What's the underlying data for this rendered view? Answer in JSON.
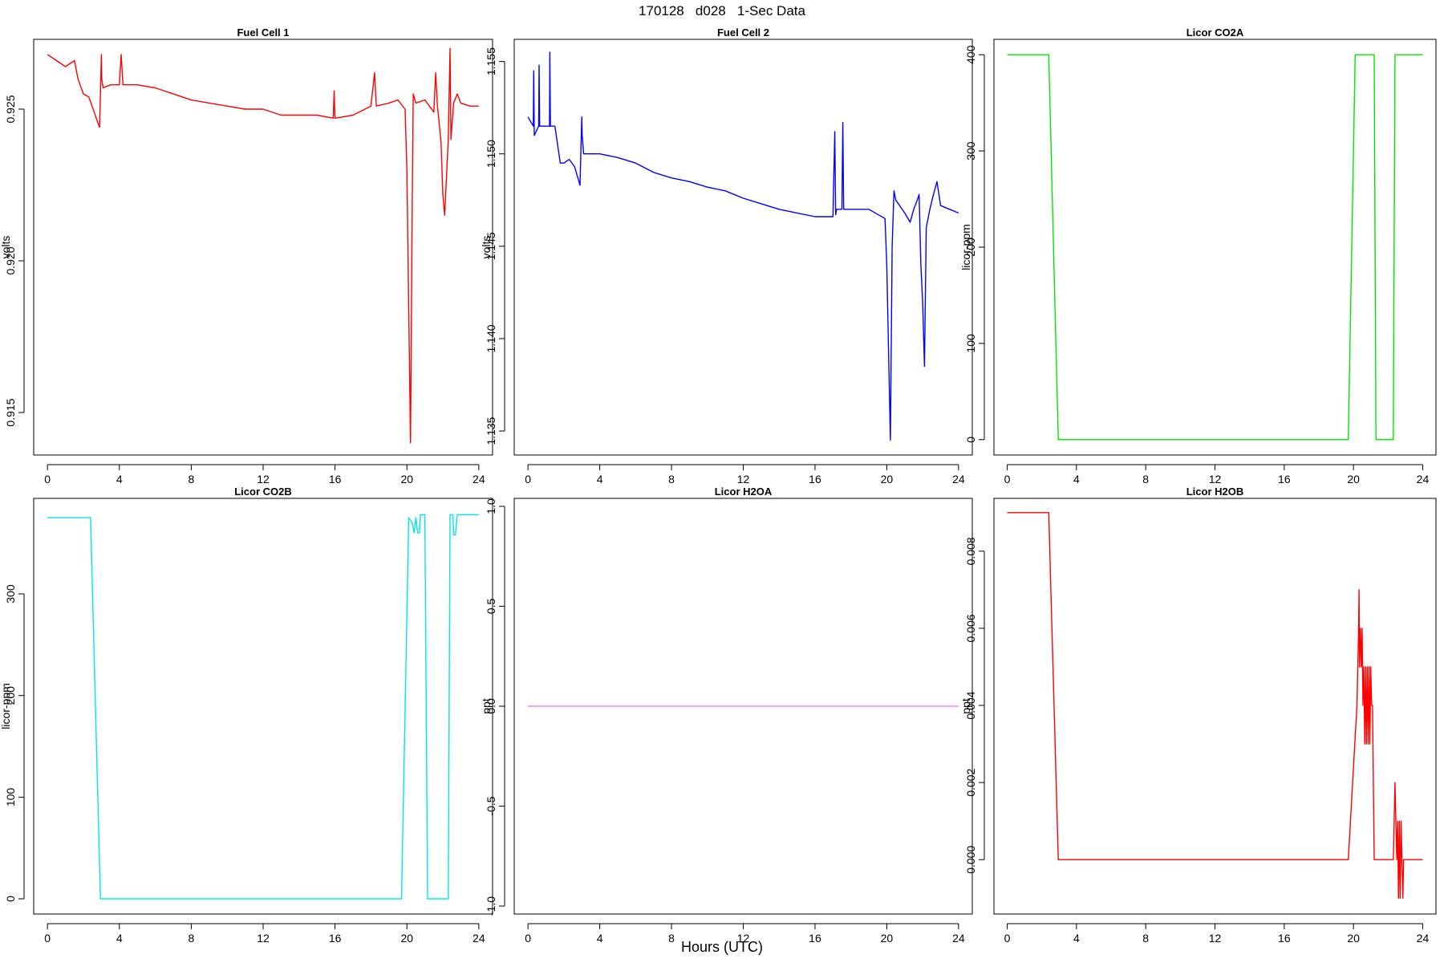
{
  "header": {
    "title": "170128   d028   1-Sec Data",
    "xlabel": "Hours (UTC)"
  },
  "chart_data": [
    {
      "type": "line",
      "title": "Fuel Cell 1",
      "ylabel": "volts",
      "color": "#ff0000",
      "xlim": [
        0,
        24
      ],
      "ylim": [
        0.9136,
        0.9273
      ],
      "xticks": [
        0,
        4,
        8,
        12,
        16,
        20,
        24
      ],
      "yticks": [
        0.915,
        0.92,
        0.925
      ],
      "ytick_labels": [
        "0.915",
        "0.920",
        "0.925"
      ],
      "x": [
        0,
        0.5,
        1.0,
        1.5,
        1.7,
        2.0,
        2.3,
        2.6,
        2.9,
        3.0,
        3.02,
        3.1,
        3.5,
        4.0,
        4.1,
        4.2,
        5.0,
        6.0,
        7.0,
        8.0,
        9.0,
        10.0,
        11.0,
        12.0,
        13.0,
        14.0,
        15.0,
        15.9,
        15.95,
        16.0,
        17.0,
        18.0,
        18.2,
        18.3,
        19.0,
        19.5,
        19.9,
        20.0,
        20.2,
        20.3,
        20.35,
        20.5,
        21.0,
        21.5,
        21.6,
        21.7,
        21.9,
        22.0,
        22.1,
        22.3,
        22.4,
        22.45,
        22.6,
        22.8,
        23.0,
        23.5,
        24.0
      ],
      "y": [
        0.9268,
        0.9266,
        0.9264,
        0.9266,
        0.926,
        0.9255,
        0.9254,
        0.9249,
        0.9244,
        0.9268,
        0.926,
        0.9257,
        0.9258,
        0.9258,
        0.9268,
        0.9258,
        0.9258,
        0.9257,
        0.9255,
        0.9253,
        0.9252,
        0.9251,
        0.925,
        0.925,
        0.9248,
        0.9248,
        0.9248,
        0.9247,
        0.9256,
        0.9247,
        0.9248,
        0.9251,
        0.9262,
        0.9251,
        0.9252,
        0.9253,
        0.925,
        0.923,
        0.914,
        0.922,
        0.9255,
        0.9252,
        0.9253,
        0.9249,
        0.9262,
        0.9251,
        0.9239,
        0.9222,
        0.9215,
        0.924,
        0.927,
        0.924,
        0.9252,
        0.9255,
        0.9252,
        0.9251,
        0.9251
      ]
    },
    {
      "type": "line",
      "title": "Fuel Cell 2",
      "ylabel": "volts",
      "color": "#0000ff",
      "xlim": [
        0,
        24
      ],
      "ylim": [
        1.1337,
        1.1562
      ],
      "xticks": [
        0,
        4,
        8,
        12,
        16,
        20,
        24
      ],
      "yticks": [
        1.135,
        1.14,
        1.145,
        1.15,
        1.155
      ],
      "ytick_labels": [
        "1.135",
        "1.140",
        "1.145",
        "1.150",
        "1.155"
      ],
      "x": [
        0,
        0.3,
        0.32,
        0.35,
        0.6,
        0.62,
        0.65,
        1.0,
        1.2,
        1.22,
        1.25,
        1.5,
        1.8,
        2.0,
        2.3,
        2.6,
        2.9,
        3.0,
        3.02,
        3.1,
        3.5,
        4.0,
        5.0,
        6.0,
        7.0,
        8.0,
        9.0,
        10.0,
        11.0,
        12.0,
        13.0,
        14.0,
        15.0,
        16.0,
        17.0,
        17.1,
        17.15,
        17.2,
        17.5,
        17.55,
        17.6,
        18.0,
        19.0,
        19.9,
        20.0,
        20.2,
        20.3,
        20.4,
        20.5,
        21.0,
        21.3,
        21.5,
        21.7,
        21.8,
        21.9,
        22.0,
        22.1,
        22.2,
        22.4,
        22.6,
        22.8,
        23.0,
        23.5,
        24.0
      ],
      "y": [
        1.152,
        1.1515,
        1.1545,
        1.151,
        1.1515,
        1.1548,
        1.1515,
        1.1515,
        1.1515,
        1.1555,
        1.1515,
        1.1515,
        1.1495,
        1.1495,
        1.1497,
        1.1493,
        1.1483,
        1.152,
        1.151,
        1.15,
        1.15,
        1.15,
        1.1498,
        1.1495,
        1.149,
        1.1487,
        1.1485,
        1.1482,
        1.148,
        1.1476,
        1.1473,
        1.147,
        1.1468,
        1.1466,
        1.1466,
        1.1512,
        1.1467,
        1.147,
        1.147,
        1.1517,
        1.147,
        1.147,
        1.147,
        1.1465,
        1.144,
        1.1345,
        1.145,
        1.148,
        1.1475,
        1.1468,
        1.1463,
        1.147,
        1.1475,
        1.1478,
        1.144,
        1.142,
        1.1385,
        1.146,
        1.147,
        1.1478,
        1.1485,
        1.1472,
        1.147,
        1.1468
      ]
    },
    {
      "type": "line",
      "title": "Licor CO2A",
      "ylabel": "licor-ppm",
      "color": "#00e600",
      "xlim": [
        0,
        24
      ],
      "ylim": [
        -16,
        416
      ],
      "xticks": [
        0,
        4,
        8,
        12,
        16,
        20,
        24
      ],
      "yticks": [
        0,
        100,
        200,
        300,
        400
      ],
      "ytick_labels": [
        "0",
        "100",
        "200",
        "300",
        "400"
      ],
      "x": [
        0,
        2.4,
        2.95,
        19.7,
        20.1,
        21.2,
        21.3,
        22.3,
        22.4,
        24
      ],
      "y": [
        400,
        400,
        0,
        0,
        400,
        400,
        0,
        0,
        400,
        400
      ]
    },
    {
      "type": "line",
      "title": "Licor CO2B",
      "ylabel": "licor-ppm",
      "color": "#00e6e6",
      "xlim": [
        0,
        24
      ],
      "ylim": [
        -15,
        394
      ],
      "xticks": [
        0,
        4,
        8,
        12,
        16,
        20,
        24
      ],
      "yticks": [
        0,
        100,
        200,
        300
      ],
      "ytick_labels": [
        "0",
        "100",
        "200",
        "300"
      ],
      "x": [
        0,
        2.4,
        2.95,
        19.7,
        20.1,
        20.3,
        20.4,
        20.5,
        20.6,
        20.7,
        20.75,
        20.8,
        21.0,
        21.15,
        21.3,
        22.3,
        22.4,
        22.55,
        22.6,
        22.7,
        22.8,
        24
      ],
      "y": [
        375,
        375,
        0,
        0,
        375,
        370,
        360,
        375,
        360,
        360,
        378,
        378,
        378,
        0,
        0,
        0,
        378,
        378,
        358,
        358,
        378,
        378
      ]
    },
    {
      "type": "line",
      "title": "Licor H2OA",
      "ylabel": "ppt",
      "color": "#ee82ee",
      "xlim": [
        0,
        24
      ],
      "ylim": [
        -1.04,
        1.04
      ],
      "xticks": [
        0,
        4,
        8,
        12,
        16,
        20,
        24
      ],
      "yticks": [
        -1.0,
        -0.5,
        0.0,
        0.5,
        1.0
      ],
      "ytick_labels": [
        "-1.0",
        "-0.5",
        "0.0",
        "0.5",
        "1.0"
      ],
      "x": [
        0,
        24
      ],
      "y": [
        0,
        0
      ]
    },
    {
      "type": "line",
      "title": "Licor H2OB",
      "ylabel": "ppt",
      "color": "#ff0000",
      "xlim": [
        0,
        24
      ],
      "ylim": [
        -0.00141,
        0.00937
      ],
      "xticks": [
        0,
        4,
        8,
        12,
        16,
        20,
        24
      ],
      "yticks": [
        0.0,
        0.002,
        0.004,
        0.006,
        0.008
      ],
      "ytick_labels": [
        "0.000",
        "0.002",
        "0.004",
        "0.006",
        "0.008"
      ],
      "x": [
        0,
        2.4,
        2.95,
        19.7,
        20.2,
        20.3,
        20.32,
        20.35,
        20.4,
        20.45,
        20.5,
        20.55,
        20.6,
        20.65,
        20.7,
        20.75,
        20.8,
        20.85,
        20.9,
        20.95,
        21.0,
        21.05,
        21.1,
        21.2,
        21.3,
        22.3,
        22.35,
        22.4,
        22.45,
        22.5,
        22.55,
        22.6,
        22.65,
        22.7,
        22.75,
        22.8,
        22.85,
        22.9,
        23.0,
        24
      ],
      "y": [
        0.009,
        0.009,
        0,
        0,
        0.004,
        0.006,
        0.007,
        0.005,
        0.006,
        0.005,
        0.006,
        0.004,
        0.005,
        0.003,
        0.005,
        0.003,
        0.005,
        0.003,
        0.005,
        0.003,
        0.005,
        0.004,
        0.004,
        0,
        0,
        0,
        0.001,
        0.002,
        0.001,
        0,
        0.001,
        -0.001,
        0.001,
        -0.001,
        0.001,
        0,
        -0.001,
        0,
        0,
        0
      ]
    }
  ]
}
